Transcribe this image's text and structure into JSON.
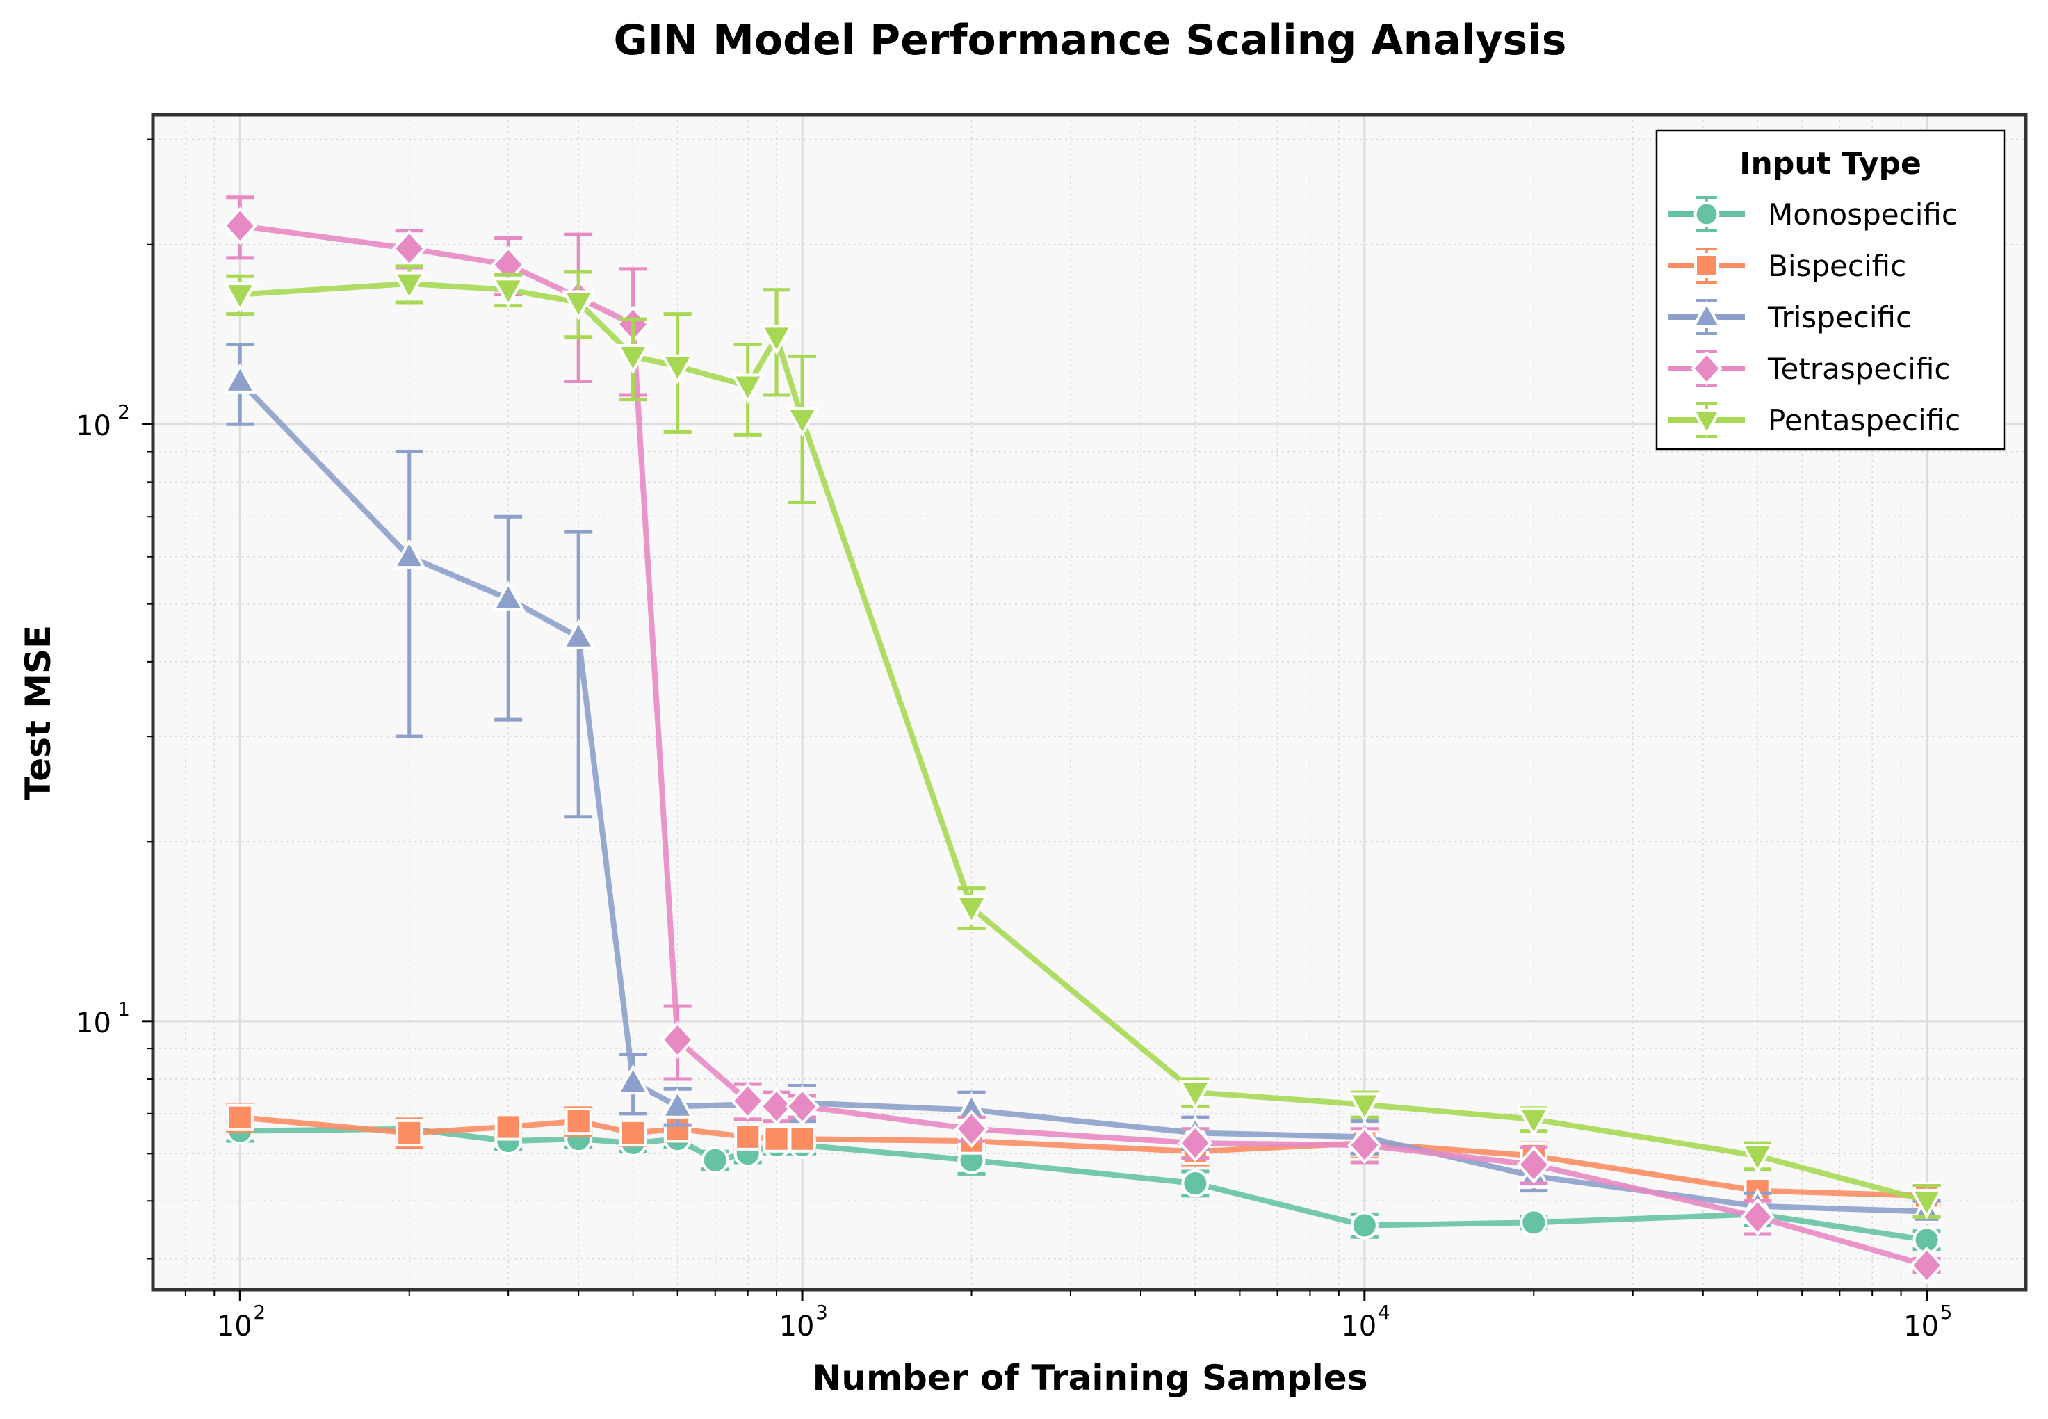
{
  "chart_data": {
    "type": "line",
    "title": "GIN Model Performance Scaling Analysis",
    "xlabel": "Number of Training Samples",
    "ylabel": "Test MSE",
    "xscale": "log",
    "yscale": "log",
    "xlim": [
      70,
      150000
    ],
    "ylim": [
      3.55,
      330
    ],
    "x_ticks": [
      {
        "value": 100,
        "base": "10",
        "exp": "2"
      },
      {
        "value": 1000,
        "base": "10",
        "exp": "3"
      },
      {
        "value": 10000,
        "base": "10",
        "exp": "4"
      },
      {
        "value": 100000,
        "base": "10",
        "exp": "5"
      }
    ],
    "y_ticks": [
      {
        "value": 10,
        "base": "10",
        "exp": "1"
      },
      {
        "value": 100,
        "base": "10",
        "exp": "2"
      }
    ],
    "grid": true,
    "legend": {
      "title": "Input Type",
      "position": "top-right"
    },
    "series": [
      {
        "name": "Monospecific",
        "color": "#66c2a5",
        "marker": "circle",
        "x": [
          100,
          200,
          300,
          400,
          500,
          600,
          700,
          800,
          900,
          1000,
          2000,
          5000,
          10000,
          20000,
          50000,
          100000
        ],
        "y": [
          6.55,
          6.6,
          6.3,
          6.35,
          6.25,
          6.35,
          5.85,
          6.0,
          6.2,
          6.2,
          5.85,
          5.35,
          4.55,
          4.6,
          4.75,
          4.3
        ],
        "err": [
          0.25,
          0.25,
          0.2,
          0.2,
          0.2,
          0.2,
          0.2,
          0.2,
          0.2,
          0.2,
          0.3,
          0.25,
          0.2,
          0.1,
          0.2,
          0.15
        ]
      },
      {
        "name": "Bispecific",
        "color": "#fc8d62",
        "marker": "square",
        "x": [
          100,
          200,
          300,
          400,
          500,
          600,
          800,
          900,
          1000,
          2000,
          5000,
          10000,
          20000,
          50000,
          100000
        ],
        "y": [
          6.9,
          6.5,
          6.65,
          6.8,
          6.5,
          6.6,
          6.4,
          6.35,
          6.35,
          6.3,
          6.05,
          6.25,
          5.95,
          5.2,
          5.1
        ],
        "err": [
          0.35,
          0.35,
          0.3,
          0.35,
          0.3,
          0.3,
          0.3,
          0.25,
          0.25,
          0.2,
          0.3,
          0.3,
          0.3,
          0.2,
          0.2
        ]
      },
      {
        "name": "Trispecific",
        "color": "#8da0cb",
        "marker": "triangle-up",
        "x": [
          100,
          200,
          300,
          400,
          500,
          600,
          1000,
          2000,
          5000,
          10000,
          20000,
          50000,
          100000
        ],
        "y": [
          118,
          60,
          51,
          44,
          7.9,
          7.2,
          7.3,
          7.1,
          6.5,
          6.4,
          5.5,
          4.9,
          4.8
        ],
        "err": [
          18,
          30,
          19,
          22,
          0.9,
          0.5,
          0.5,
          0.5,
          0.4,
          0.4,
          0.3,
          0.25,
          0.2
        ]
      },
      {
        "name": "Tetraspecific",
        "color": "#e78ac3",
        "marker": "diamond",
        "x": [
          100,
          200,
          300,
          400,
          500,
          600,
          800,
          900,
          1000,
          2000,
          5000,
          10000,
          20000,
          50000,
          100000
        ],
        "y": [
          215,
          197,
          185,
          163,
          147,
          9.3,
          7.35,
          7.2,
          7.2,
          6.6,
          6.25,
          6.2,
          5.75,
          4.7,
          3.9
        ],
        "err": [
          25,
          14,
          20,
          45,
          35,
          1.3,
          0.5,
          0.4,
          0.3,
          0.3,
          0.35,
          0.4,
          0.4,
          0.3,
          0.1
        ]
      },
      {
        "name": "Pentaspecific",
        "color": "#a6d854",
        "marker": "triangle-down",
        "x": [
          100,
          200,
          300,
          400,
          500,
          600,
          800,
          900,
          1000,
          2000,
          5000,
          10000,
          20000,
          50000,
          100000
        ],
        "y": [
          165,
          172,
          168,
          160,
          130,
          125,
          116,
          140,
          102,
          15.5,
          7.6,
          7.25,
          6.85,
          5.95,
          5.0
        ],
        "err": [
          12,
          12,
          10,
          20,
          20,
          28,
          20,
          28,
          28,
          1.2,
          0.4,
          0.35,
          0.3,
          0.3,
          0.3
        ]
      }
    ]
  }
}
